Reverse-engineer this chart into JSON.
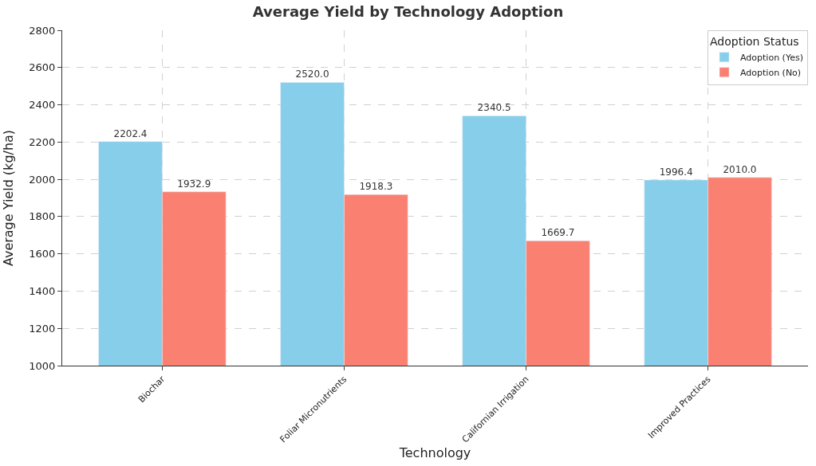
{
  "chart_data": {
    "type": "bar",
    "title": "Average Yield by Technology Adoption",
    "xlabel": "Technology",
    "ylabel": "Average Yield (kg/ha)",
    "legend_title": "Adoption Status",
    "categories": [
      "Biochar",
      "Foliar Micronutrients",
      "Californian Irrigation",
      "Improved Practices"
    ],
    "series": [
      {
        "name": "Adoption (Yes)",
        "color": "#87ceeb",
        "values": [
          2202.4,
          2520.0,
          2340.5,
          1996.4
        ],
        "value_labels": [
          "2202.4",
          "2520.0",
          "2340.5",
          "1996.4"
        ]
      },
      {
        "name": "Adoption (No)",
        "color": "#fa8072",
        "values": [
          1932.9,
          1918.3,
          1669.7,
          2010.0
        ],
        "value_labels": [
          "1932.9",
          "1918.3",
          "1669.7",
          "2010.0"
        ]
      }
    ],
    "ylim": [
      1000,
      2800
    ],
    "yticks": [
      1000,
      1200,
      1400,
      1600,
      1800,
      2000,
      2200,
      2400,
      2600,
      2800
    ],
    "grid": true,
    "legend": "top right"
  }
}
